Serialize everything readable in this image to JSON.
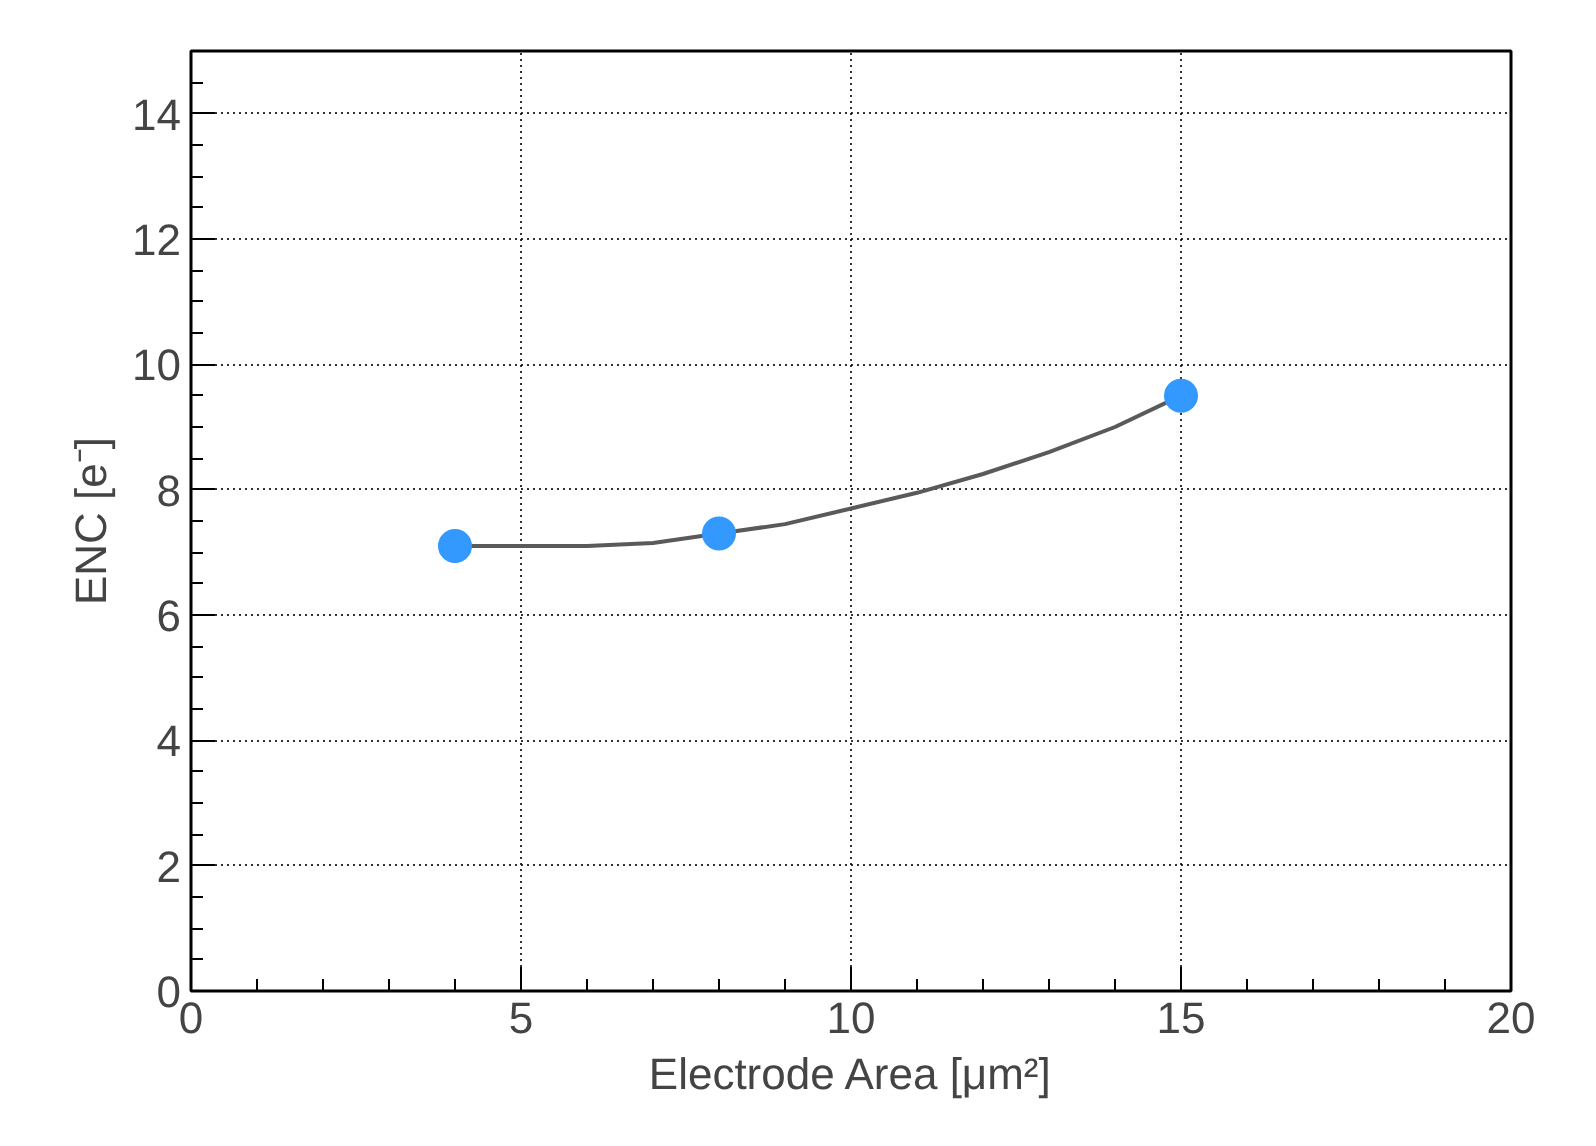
{
  "chart_data": {
    "type": "scatter",
    "xlabel": "Electrode Area [μm²]",
    "ylabel": "ENC [e⁻]",
    "x": [
      4,
      8,
      15
    ],
    "series": [
      {
        "type": "line",
        "color": "#5a5a5a",
        "x": [
          4,
          5,
          6,
          7,
          8,
          9,
          10,
          11,
          12,
          13,
          14,
          15
        ],
        "values": [
          7.1,
          7.1,
          7.1,
          7.15,
          7.3,
          7.45,
          7.7,
          7.95,
          8.25,
          8.6,
          9.0,
          9.5
        ],
        "marker": "none",
        "line_style": "solid"
      },
      {
        "color": "#3399ff",
        "values": [
          7.1,
          7.3,
          9.5
        ],
        "marker": "circle"
      }
    ],
    "xlim": [
      0,
      20
    ],
    "xticks": [
      0,
      5,
      10,
      15,
      20
    ],
    "ylim": [
      0,
      15
    ],
    "yticks": [
      0,
      2,
      4,
      6,
      8,
      10,
      12,
      14
    ],
    "grid": true
  }
}
